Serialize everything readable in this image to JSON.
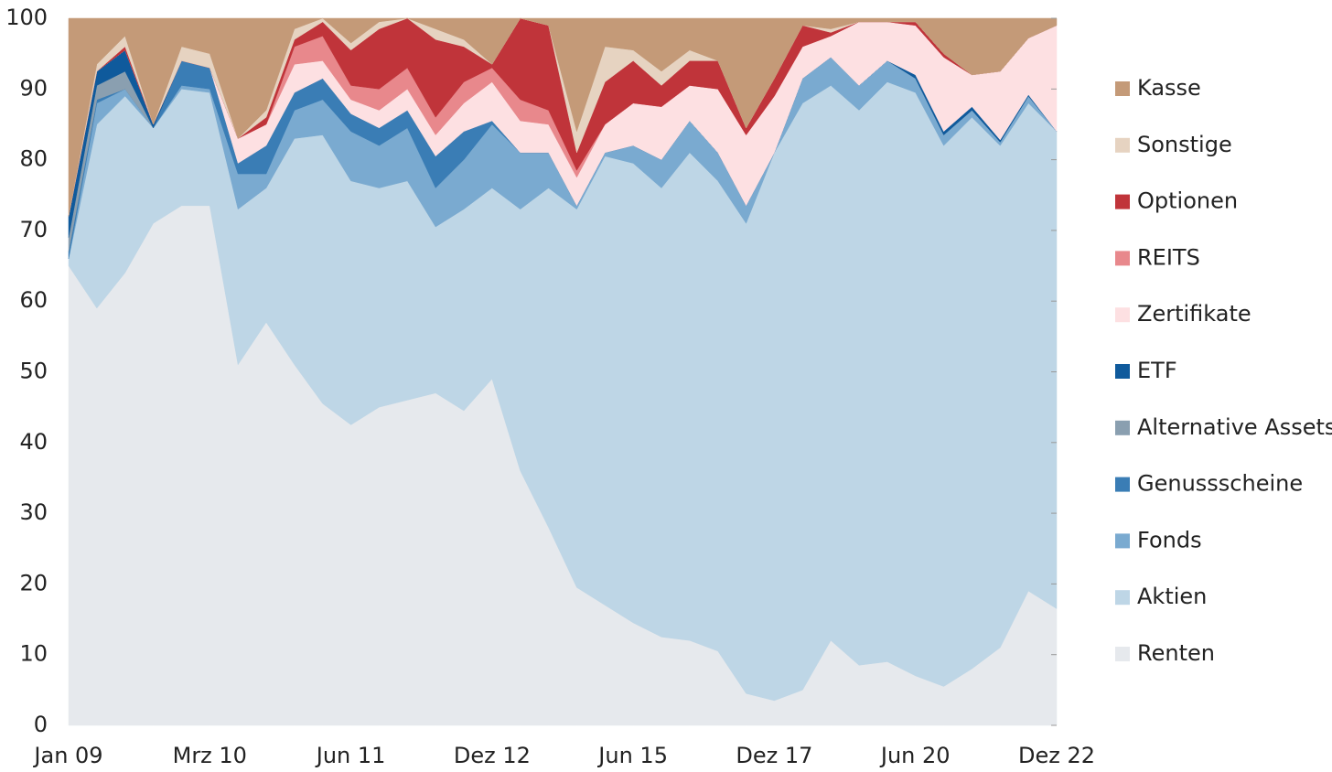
{
  "chart_data": {
    "type": "stacked_area",
    "categories": [
      "Jan 09",
      null,
      null,
      null,
      null,
      "Mrz 10",
      null,
      null,
      null,
      null,
      "Jun 11",
      null,
      null,
      null,
      null,
      "Dez 12",
      null,
      null,
      null,
      null,
      "Jun 15",
      null,
      null,
      null,
      null,
      "Dez 17",
      null,
      null,
      null,
      null,
      "Jun 20",
      null,
      null,
      null,
      null,
      "Dez 22"
    ],
    "ylim": [
      0,
      100
    ],
    "yticks": [
      0,
      10,
      20,
      30,
      40,
      50,
      60,
      70,
      80,
      90,
      100
    ],
    "legend": "right",
    "series": [
      {
        "name": "Renten",
        "color": "#e6e9ed",
        "values": [
          65,
          59,
          64,
          71,
          73.5,
          73.5,
          51,
          57,
          51,
          45.5,
          42.5,
          45,
          46,
          47,
          44.5,
          49,
          36,
          28,
          19.5,
          17,
          14.5,
          12.5,
          12,
          10.5,
          4.5,
          3.5,
          5,
          12,
          8.5,
          9,
          7,
          5.5,
          8,
          11,
          19,
          16.5
        ]
      },
      {
        "name": "Aktien",
        "color": "#bed6e6",
        "values": [
          1,
          26,
          25,
          13.5,
          16.5,
          16,
          22,
          19,
          32,
          38,
          34.5,
          31,
          31,
          23.5,
          28.5,
          27,
          37,
          48,
          53.5,
          63.5,
          65,
          63.5,
          69,
          66.5,
          66.5,
          77.5,
          83,
          78.5,
          78.5,
          82,
          82.5,
          76.5,
          78,
          71,
          69,
          67.5
        ]
      },
      {
        "name": "Fonds",
        "color": "#7aaad0",
        "values": [
          0,
          3,
          1,
          0,
          0.5,
          0.5,
          5,
          2,
          4,
          5,
          7,
          6,
          7.5,
          5.5,
          7,
          9,
          8,
          5,
          0.5,
          0.5,
          2.5,
          4,
          4.5,
          4,
          2.5,
          0,
          3.5,
          4,
          3.5,
          3,
          2,
          1.5,
          1,
          0.5,
          1,
          0
        ]
      },
      {
        "name": "Genussscheine",
        "color": "#3a7db5",
        "values": [
          1,
          0.5,
          0,
          0,
          3.5,
          3,
          1.5,
          4,
          2.5,
          3,
          2.5,
          2.5,
          2.5,
          4.5,
          4,
          0.5,
          0,
          0,
          0,
          0,
          0,
          0,
          0,
          0,
          0,
          0,
          0,
          0,
          0,
          0,
          0,
          0,
          0,
          0,
          0,
          0
        ]
      },
      {
        "name": "Alternative Assets",
        "color": "#8a9fb0",
        "values": [
          2,
          2,
          2.5,
          0,
          0,
          0,
          0,
          0,
          0,
          0,
          0,
          0,
          0,
          0,
          0,
          0,
          0,
          0,
          0,
          0,
          0,
          0,
          0,
          0,
          0,
          0,
          0,
          0,
          0,
          0,
          0,
          0,
          0,
          0,
          0,
          0
        ]
      },
      {
        "name": "ETF",
        "color": "#0f5a9c",
        "values": [
          3,
          2,
          3,
          0.5,
          0,
          0,
          0,
          0,
          0,
          0,
          0,
          0,
          0,
          0,
          0,
          0,
          0,
          0,
          0,
          0,
          0,
          0,
          0,
          0,
          0,
          0,
          0,
          0,
          0,
          0,
          0.5,
          0.5,
          0.5,
          0.3,
          0.2,
          0
        ]
      },
      {
        "name": "Zertifikate",
        "color": "#fde0e2",
        "values": [
          0,
          0,
          0,
          0,
          0,
          0,
          3.5,
          3,
          4,
          2.5,
          2,
          2.5,
          3,
          3,
          4,
          5.5,
          4.5,
          4,
          4,
          4,
          6,
          7.5,
          5,
          9,
          10,
          8,
          4.5,
          3,
          9,
          5.5,
          7,
          10.5,
          4.5,
          9.7,
          8,
          15
        ]
      },
      {
        "name": "REITS",
        "color": "#e8888c",
        "values": [
          0,
          0,
          0,
          0,
          0,
          0,
          0,
          0,
          2.5,
          3.5,
          2,
          3,
          3,
          2.5,
          3,
          2,
          3,
          2,
          1,
          0,
          0,
          0,
          0,
          0,
          0,
          0,
          0,
          0,
          0,
          0,
          0,
          0,
          0,
          0,
          0,
          0
        ]
      },
      {
        "name": "Optionen",
        "color": "#c0343a",
        "values": [
          0,
          0,
          0.5,
          0,
          0,
          0,
          0,
          1,
          1,
          2,
          5,
          8.5,
          7,
          11,
          5,
          0.5,
          11.5,
          12,
          2.5,
          6,
          6,
          3,
          3.5,
          4,
          1,
          2.5,
          3,
          0.5,
          0,
          0,
          0.5,
          0.5,
          0,
          0,
          0,
          0
        ]
      },
      {
        "name": "Sonstige",
        "color": "#e6d3c1",
        "values": [
          0,
          1,
          1.5,
          0,
          2,
          2,
          0,
          1,
          1.5,
          0.5,
          1,
          1,
          0,
          1.5,
          1,
          0,
          0,
          0,
          3,
          5,
          1.5,
          2,
          1.5,
          0,
          0,
          0,
          0,
          0.5,
          0,
          0,
          0,
          0,
          0,
          0,
          0,
          0
        ]
      },
      {
        "name": "Kasse",
        "color": "#c49a78",
        "values": [
          28,
          6.5,
          2.5,
          15,
          4,
          5,
          17,
          13,
          1.5,
          0,
          3.5,
          0.5,
          0,
          1.5,
          3,
          6.5,
          0,
          1,
          16,
          4,
          4.5,
          7.5,
          4.5,
          6,
          15.5,
          8.5,
          1,
          1.5,
          0.5,
          0.5,
          0.5,
          5,
          8,
          7.5,
          2.8,
          1
        ]
      }
    ]
  }
}
